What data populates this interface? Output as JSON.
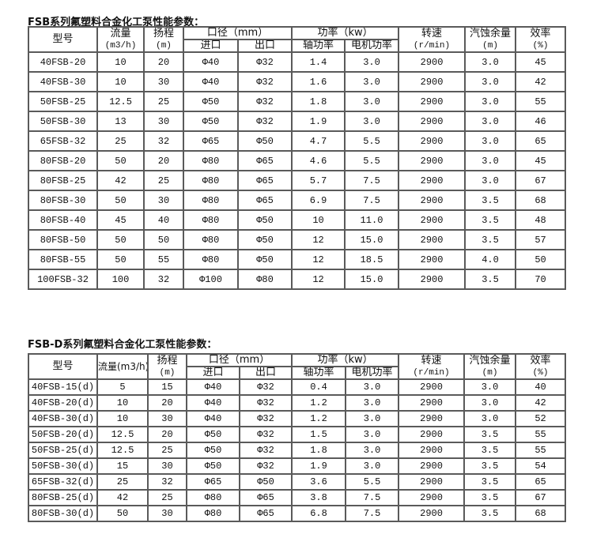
{
  "table1": {
    "title": "FSB系列氟塑料合金化工泵性能参数：",
    "headers": {
      "model": "型号",
      "flow": "流量",
      "flow_unit": "(m3/h)",
      "head": "扬程",
      "head_unit": "(m)",
      "caliber": "口径（mm）",
      "inlet": "进口",
      "outlet": "出口",
      "power": "功率（kw）",
      "shaft_power": "轴功率",
      "motor_power": "电机功率",
      "speed": "转速",
      "speed_unit": "(r/min)",
      "npsh": "汽蚀余量",
      "npsh_unit": "(m)",
      "efficiency": "效率",
      "efficiency_unit": "(%)"
    },
    "rows": [
      [
        "40FSB-20",
        "10",
        "20",
        "Φ40",
        "Φ32",
        "1.4",
        "3.0",
        "2900",
        "3.0",
        "45"
      ],
      [
        "40FSB-30",
        "10",
        "30",
        "Φ40",
        "Φ32",
        "1.6",
        "3.0",
        "2900",
        "3.0",
        "42"
      ],
      [
        "50FSB-25",
        "12.5",
        "25",
        "Φ50",
        "Φ32",
        "1.8",
        "3.0",
        "2900",
        "3.0",
        "55"
      ],
      [
        "50FSB-30",
        "13",
        "30",
        "Φ50",
        "Φ32",
        "1.9",
        "3.0",
        "2900",
        "3.0",
        "46"
      ],
      [
        "65FSB-32",
        "25",
        "32",
        "Φ65",
        "Φ50",
        "4.7",
        "5.5",
        "2900",
        "3.0",
        "65"
      ],
      [
        "80FSB-20",
        "50",
        "20",
        "Φ80",
        "Φ65",
        "4.6",
        "5.5",
        "2900",
        "3.0",
        "45"
      ],
      [
        "80FSB-25",
        "42",
        "25",
        "Φ80",
        "Φ65",
        "5.7",
        "7.5",
        "2900",
        "3.0",
        "67"
      ],
      [
        "80FSB-30",
        "50",
        "30",
        "Φ80",
        "Φ65",
        "6.9",
        "7.5",
        "2900",
        "3.5",
        "68"
      ],
      [
        "80FSB-40",
        "45",
        "40",
        "Φ80",
        "Φ50",
        "10",
        "11.0",
        "2900",
        "3.5",
        "48"
      ],
      [
        "80FSB-50",
        "50",
        "50",
        "Φ80",
        "Φ50",
        "12",
        "15.0",
        "2900",
        "3.5",
        "57"
      ],
      [
        "80FSB-55",
        "50",
        "55",
        "Φ80",
        "Φ50",
        "12",
        "18.5",
        "2900",
        "4.0",
        "50"
      ],
      [
        "100FSB-32",
        "100",
        "32",
        "Φ100",
        "Φ80",
        "12",
        "15.0",
        "2900",
        "3.5",
        "70"
      ]
    ]
  },
  "table2": {
    "title": "FSB-D系列氟塑料合金化工泵性能参数：",
    "headers": {
      "model": "型号",
      "flow": "流量(m3/h)",
      "head": "扬程",
      "head_unit": "(m)",
      "caliber": "口径（mm）",
      "inlet": "进口",
      "outlet": "出口",
      "power": "功率（kw）",
      "shaft_power": "轴功率",
      "motor_power": "电机功率",
      "speed": "转速",
      "speed_unit": "(r/min)",
      "npsh": "汽蚀余量",
      "npsh_unit": "(m)",
      "efficiency": "效率",
      "efficiency_unit": "(%)"
    },
    "rows": [
      [
        "40FSB-15(d)",
        "5",
        "15",
        "Φ40",
        "Φ32",
        "0.4",
        "3.0",
        "2900",
        "3.0",
        "40"
      ],
      [
        "40FSB-20(d)",
        "10",
        "20",
        "Φ40",
        "Φ32",
        "1.2",
        "3.0",
        "2900",
        "3.0",
        "42"
      ],
      [
        "40FSB-30(d)",
        "10",
        "30",
        "Φ40",
        "Φ32",
        "1.2",
        "3.0",
        "2900",
        "3.0",
        "52"
      ],
      [
        "50FSB-20(d)",
        "12.5",
        "20",
        "Φ50",
        "Φ32",
        "1.5",
        "3.0",
        "2900",
        "3.5",
        "55"
      ],
      [
        "50FSB-25(d)",
        "12.5",
        "25",
        "Φ50",
        "Φ32",
        "1.8",
        "3.0",
        "2900",
        "3.5",
        "55"
      ],
      [
        "50FSB-30(d)",
        "15",
        "30",
        "Φ50",
        "Φ32",
        "1.9",
        "3.0",
        "2900",
        "3.5",
        "54"
      ],
      [
        "65FSB-32(d)",
        "25",
        "32",
        "Φ65",
        "Φ50",
        "3.6",
        "5.5",
        "2900",
        "3.5",
        "65"
      ],
      [
        "80FSB-25(d)",
        "42",
        "25",
        "Φ80",
        "Φ65",
        "3.8",
        "7.5",
        "2900",
        "3.5",
        "67"
      ],
      [
        "80FSB-30(d)",
        "50",
        "30",
        "Φ80",
        "Φ65",
        "6.8",
        "7.5",
        "2900",
        "3.5",
        "68"
      ]
    ]
  }
}
